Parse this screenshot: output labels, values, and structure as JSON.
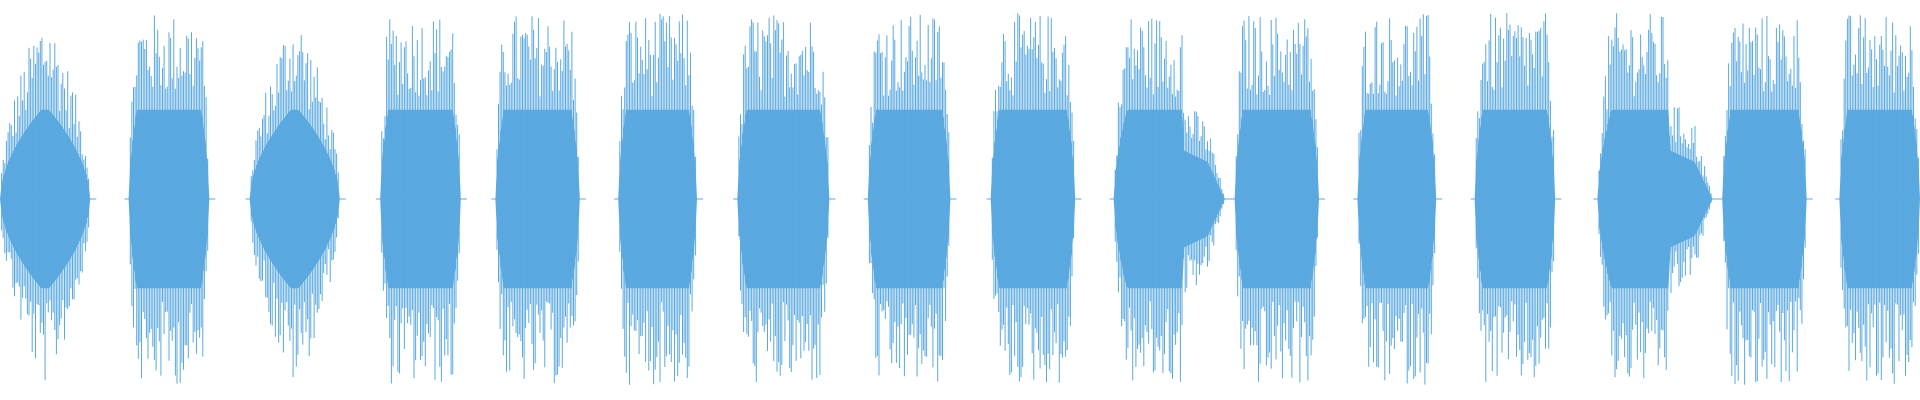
{
  "waveform": {
    "color": "#5aa9e0",
    "background": "#ffffff",
    "burst_count": 16,
    "bursts": [
      {
        "start": 0.0,
        "end": 0.047,
        "shape": "diamond"
      },
      {
        "start": 0.067,
        "end": 0.109,
        "shape": "plateau"
      },
      {
        "start": 0.13,
        "end": 0.177,
        "shape": "diamond"
      },
      {
        "start": 0.198,
        "end": 0.24,
        "shape": "plateau"
      },
      {
        "start": 0.258,
        "end": 0.302,
        "shape": "plateau"
      },
      {
        "start": 0.322,
        "end": 0.363,
        "shape": "plateau"
      },
      {
        "start": 0.384,
        "end": 0.432,
        "shape": "plateau"
      },
      {
        "start": 0.452,
        "end": 0.495,
        "shape": "plateau"
      },
      {
        "start": 0.516,
        "end": 0.56,
        "shape": "plateau"
      },
      {
        "start": 0.58,
        "end": 0.638,
        "shape": "plateau_taper"
      },
      {
        "start": 0.643,
        "end": 0.687,
        "shape": "plateau"
      },
      {
        "start": 0.707,
        "end": 0.748,
        "shape": "plateau"
      },
      {
        "start": 0.768,
        "end": 0.81,
        "shape": "plateau"
      },
      {
        "start": 0.832,
        "end": 0.892,
        "shape": "plateau_taper"
      },
      {
        "start": 0.897,
        "end": 0.941,
        "shape": "plateau"
      },
      {
        "start": 0.958,
        "end": 1.0,
        "shape": "plateau"
      }
    ]
  }
}
